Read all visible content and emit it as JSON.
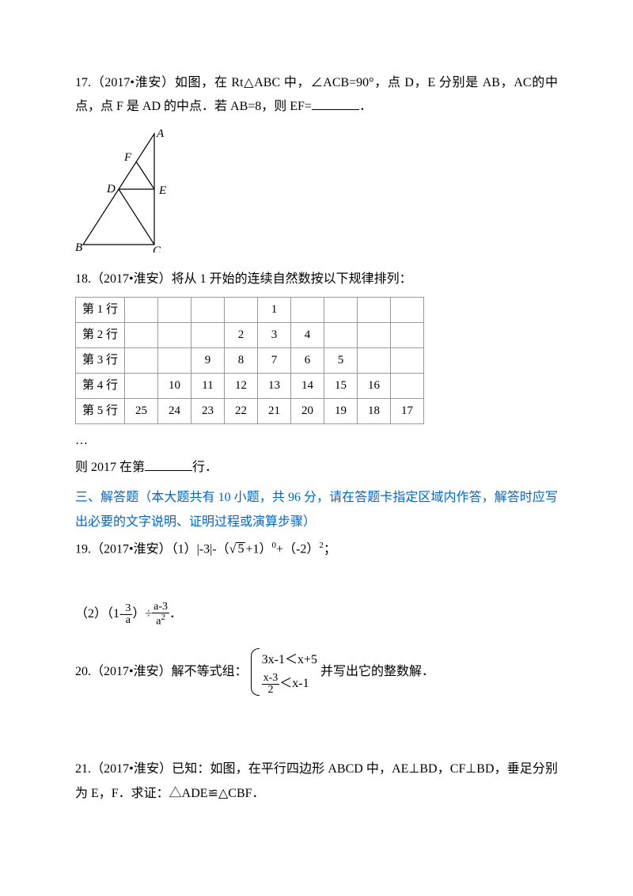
{
  "q17": {
    "prefix": "17.（2017•淮安）如图，在 Rt△ABC 中，∠ACB=90°，点 D，E 分别是 AB，AC的中点，点 F 是 AD 的中点．若 AB=8，则 EF=",
    "suffix": "．",
    "diagram": {
      "A": "A",
      "B": "B",
      "C": "C",
      "D": "D",
      "E": "E",
      "F": "F",
      "stroke": "#000000",
      "fill": "none"
    }
  },
  "q18": {
    "intro": "18.（2017•淮安）将从 1 开始的连续自然数按以下规律排列：",
    "rows": [
      {
        "label": "第 1 行",
        "cells": [
          "",
          "",
          "",
          "",
          "1",
          "",
          "",
          "",
          ""
        ]
      },
      {
        "label": "第 2 行",
        "cells": [
          "",
          "",
          "",
          "2",
          "3",
          "4",
          "",
          "",
          ""
        ]
      },
      {
        "label": "第 3 行",
        "cells": [
          "",
          "",
          "9",
          "8",
          "7",
          "6",
          "5",
          "",
          ""
        ]
      },
      {
        "label": "第 4 行",
        "cells": [
          "",
          "10",
          "11",
          "12",
          "13",
          "14",
          "15",
          "16",
          ""
        ]
      },
      {
        "label": "第 5 行",
        "cells": [
          "25",
          "24",
          "23",
          "22",
          "21",
          "20",
          "19",
          "18",
          "17"
        ]
      }
    ],
    "ellipsis": "…",
    "conclusion_pre": "则 2017 在第",
    "conclusion_post": "行．",
    "table_border_color": "#999999"
  },
  "section3": {
    "header": "三、解答题（本大题共有 10 小题，共 96 分，请在答题卡指定区域内作答，解答时应写出必要的文字说明、证明过程或演算步骤）",
    "color": "#0066cc"
  },
  "q19": {
    "line1_pre": "19.（2017•淮安）（1）|-3|-（",
    "sqrt_val": "5",
    "line1_mid": "+1）",
    "exp0": "0",
    "line1_mid2": "+（-2）",
    "exp2": "2",
    "line1_end": "；",
    "part2_pre": "（2）（1-",
    "frac1_num": "3",
    "frac1_den": "a",
    "part2_mid": "）÷",
    "frac2_num": "a-3",
    "frac2_den": "a",
    "frac2_den_exp": "2",
    "part2_end": "．"
  },
  "q20": {
    "pre": "20.（2017•淮安）解不等式组：",
    "sys1": "3x-1＜x+5",
    "sys2_num": "x-3",
    "sys2_den": "2",
    "sys2_rest": "＜x-1",
    "post": "并写出它的整数解．"
  },
  "q21": {
    "text": "21.（2017•淮安）已知：如图，在平行四边形 ABCD 中，AE⊥BD，CF⊥BD，垂足分别为 E，F．求证：△ADE≌△CBF．"
  }
}
